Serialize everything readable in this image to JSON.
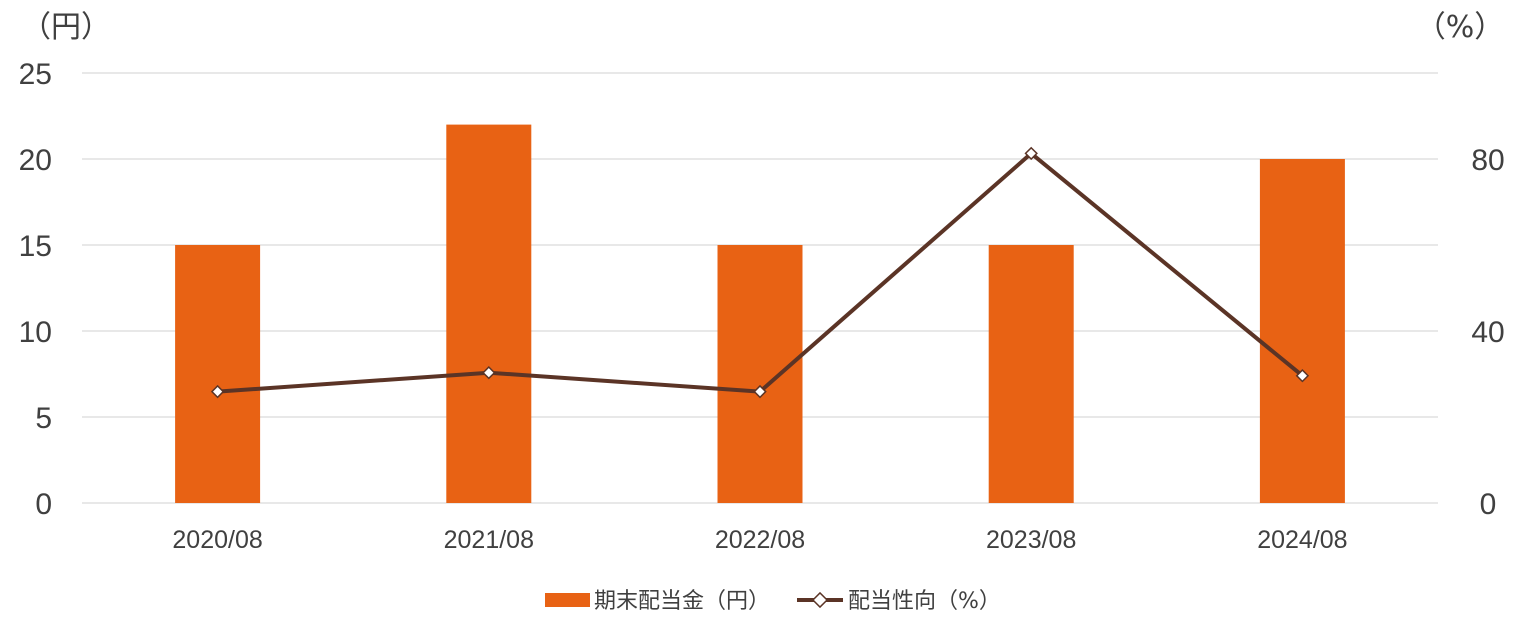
{
  "chart_data": {
    "type": "bar",
    "categories": [
      "2020/08",
      "2021/08",
      "2022/08",
      "2023/08",
      "2024/08"
    ],
    "series": [
      {
        "name": "期末配当金（円）",
        "type": "bar",
        "axis": "left",
        "color": "#E86214",
        "values": [
          15,
          22,
          15,
          15,
          20
        ]
      },
      {
        "name": "配当性向（%）",
        "type": "line",
        "axis": "right",
        "color": "#5B3426",
        "marker_fill": "#ffffff",
        "values": [
          25.9,
          30.3,
          25.9,
          81.3,
          29.6
        ]
      }
    ],
    "y_left": {
      "unit_label": "（円）",
      "range": [
        0,
        25
      ],
      "ticks": [
        "0",
        "5",
        "10",
        "15",
        "20",
        "25"
      ]
    },
    "y_right": {
      "unit_label": "（%）",
      "range": [
        0,
        100
      ],
      "ticks": [
        "0",
        "40",
        "80"
      ],
      "tick_values": [
        0,
        40,
        80
      ]
    },
    "grid": true,
    "grid_color": "#D9D9D9",
    "legend_position": "bottom"
  }
}
